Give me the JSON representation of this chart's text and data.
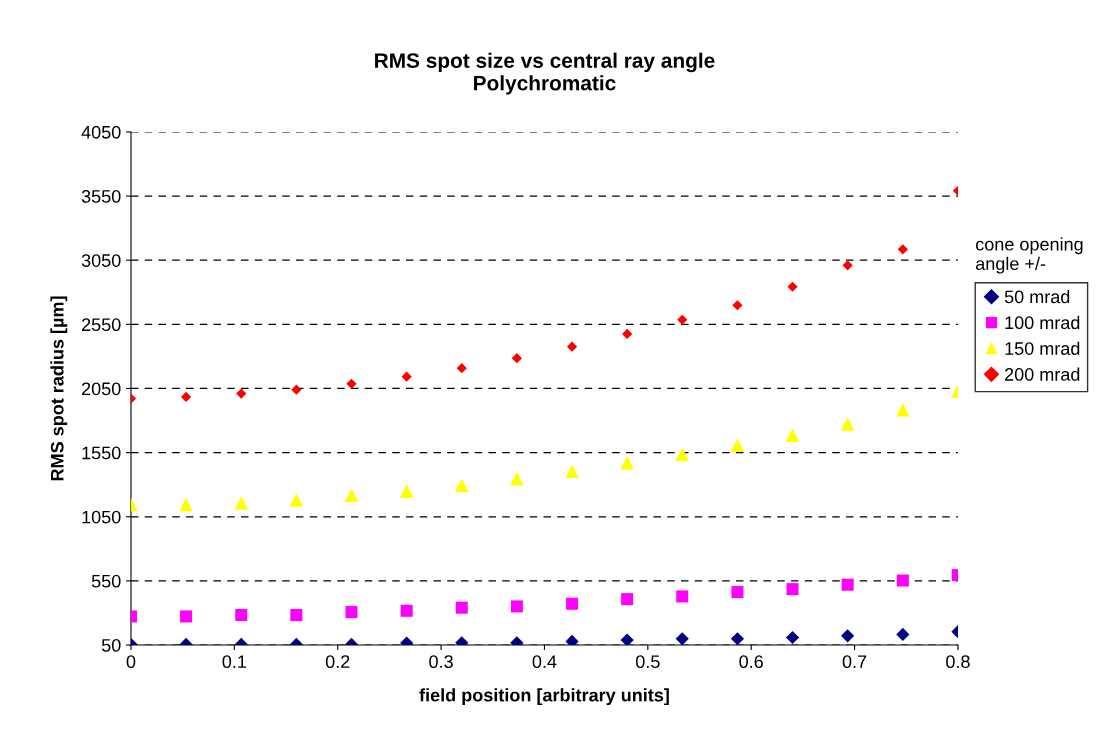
{
  "chart_data": {
    "type": "scatter",
    "title": "RMS spot size vs central ray angle\nPolychromatic",
    "xlabel": "field position [arbitrary units]",
    "ylabel": "RMS spot radius [µm]",
    "legend_title": "cone opening\nangle +/-",
    "x": [
      0,
      0.0533,
      0.1067,
      0.16,
      0.2133,
      0.2667,
      0.32,
      0.3733,
      0.4267,
      0.48,
      0.5333,
      0.5867,
      0.64,
      0.6933,
      0.7467,
      0.8
    ],
    "series": [
      {
        "name": "50 mrad",
        "color": "#000080",
        "marker": "diamond",
        "values": [
          55,
          55,
          55,
          55,
          55,
          66,
          68,
          68,
          78,
          89,
          99,
          99,
          109,
          122,
          133,
          154
        ]
      },
      {
        "name": "100 mrad",
        "color": "#ff00ff",
        "marker": "square",
        "values": [
          273,
          273,
          284,
          284,
          307,
          317,
          341,
          351,
          372,
          408,
          429,
          463,
          486,
          520,
          553,
          595
        ]
      },
      {
        "name": "150 mrad",
        "color": "#ffff00",
        "marker": "triangle",
        "values": [
          1145,
          1145,
          1158,
          1180,
          1218,
          1250,
          1296,
          1348,
          1405,
          1472,
          1538,
          1608,
          1686,
          1774,
          1885,
          2029
        ]
      },
      {
        "name": "200 mrad",
        "color": "#ff0000",
        "marker": "diamond",
        "values": [
          1971,
          1984,
          2010,
          2041,
          2086,
          2142,
          2208,
          2286,
          2376,
          2475,
          2586,
          2699,
          2843,
          3010,
          3135,
          3591
        ]
      }
    ],
    "xlim": [
      0,
      0.8
    ],
    "xticks": [
      0,
      0.1,
      0.2,
      0.3,
      0.4,
      0.5,
      0.6,
      0.7,
      0.8
    ],
    "ylim": [
      50,
      4050
    ],
    "yticks": [
      50,
      550,
      1050,
      1550,
      2050,
      2550,
      3050,
      3550,
      4050
    ],
    "grid": "y",
    "legend": "right"
  }
}
